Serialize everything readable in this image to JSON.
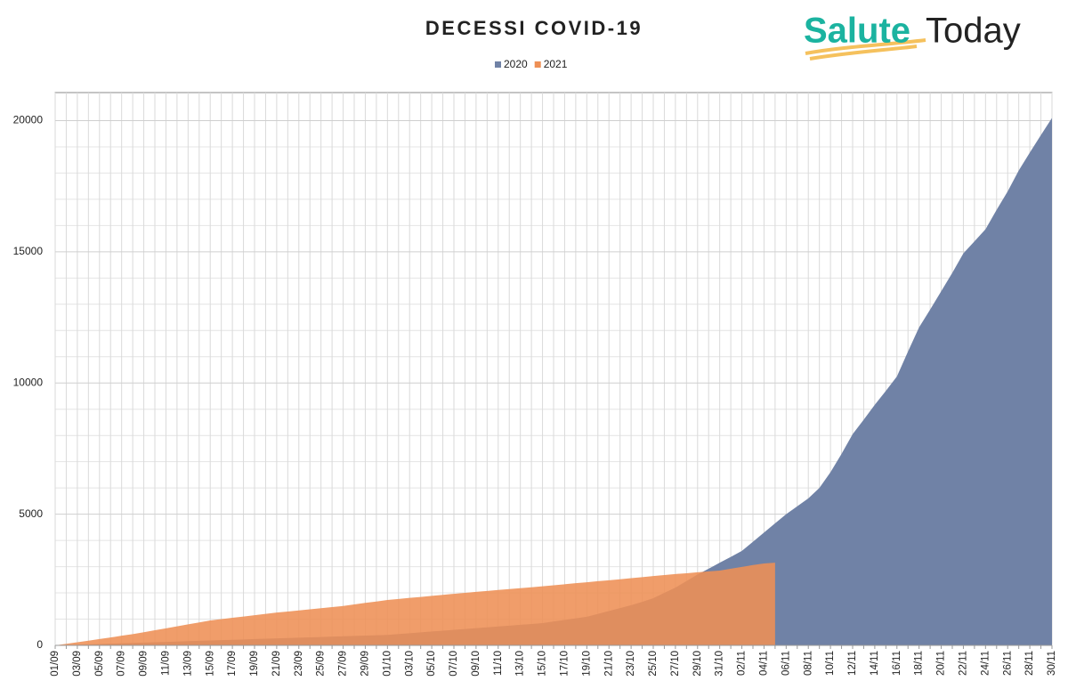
{
  "logo": {
    "first": "Salute",
    "second": "Today"
  },
  "chart_data": {
    "type": "area",
    "title": "DECESSI COVID-19",
    "categories": [
      "01/09",
      null,
      "03/09",
      null,
      "05/09",
      null,
      "07/09",
      null,
      "09/09",
      null,
      "11/09",
      null,
      "13/09",
      null,
      "15/09",
      null,
      "17/09",
      null,
      "19/09",
      null,
      "21/09",
      null,
      "23/09",
      null,
      "25/09",
      null,
      "27/09",
      null,
      "29/09",
      null,
      "01/10",
      null,
      "03/10",
      null,
      "05/10",
      null,
      "07/10",
      null,
      "09/10",
      null,
      "11/10",
      null,
      "13/10",
      null,
      "15/10",
      null,
      "17/10",
      null,
      "19/10",
      null,
      "21/10",
      null,
      "23/10",
      null,
      "25/10",
      null,
      "27/10",
      null,
      "29/10",
      null,
      "31/10",
      null,
      "02/11",
      null,
      "04/11",
      null,
      "06/11",
      null,
      "08/11",
      null,
      "10/11",
      null,
      "12/11",
      null,
      "14/11",
      null,
      "16/11",
      null,
      "18/11",
      null,
      "20/11",
      null,
      "22/11",
      null,
      "24/11",
      null,
      "26/11",
      null,
      "28/11",
      null,
      "30/11"
    ],
    "series": [
      {
        "name": "2020",
        "color": "#7082a6",
        "values": [
          0,
          13,
          26,
          40,
          53,
          66,
          80,
          93,
          106,
          120,
          133,
          146,
          160,
          173,
          186,
          200,
          213,
          226,
          240,
          253,
          266,
          280,
          293,
          306,
          320,
          333,
          346,
          360,
          373,
          386,
          400,
          432,
          464,
          496,
          528,
          560,
          592,
          624,
          656,
          688,
          720,
          752,
          784,
          816,
          850,
          910,
          970,
          1030,
          1090,
          1200,
          1310,
          1420,
          1530,
          1660,
          1800,
          2000,
          2200,
          2450,
          2700,
          2920,
          3150,
          3370,
          3600,
          3950,
          4300,
          4650,
          5000,
          5300,
          5600,
          6000,
          6600,
          7300,
          8050,
          8600,
          9170,
          9700,
          10250,
          11200,
          12120,
          12800,
          13500,
          14200,
          14940,
          15400,
          15860,
          16600,
          17300,
          18100,
          18780,
          19450,
          20100
        ]
      },
      {
        "name": "2021",
        "color": "#ee9055",
        "values": [
          0,
          60,
          120,
          180,
          240,
          300,
          370,
          430,
          500,
          575,
          650,
          725,
          800,
          875,
          950,
          1000,
          1050,
          1100,
          1150,
          1200,
          1250,
          1290,
          1330,
          1375,
          1415,
          1460,
          1500,
          1560,
          1620,
          1670,
          1730,
          1770,
          1810,
          1845,
          1885,
          1925,
          1965,
          2000,
          2040,
          2075,
          2110,
          2145,
          2180,
          2215,
          2250,
          2290,
          2330,
          2370,
          2405,
          2445,
          2480,
          2520,
          2560,
          2600,
          2640,
          2680,
          2720,
          2750,
          2785,
          2820,
          2850,
          2920,
          2990,
          3060,
          3120,
          3150,
          null,
          null,
          null,
          null,
          null,
          null,
          null,
          null,
          null,
          null,
          null,
          null,
          null,
          null,
          null,
          null,
          null,
          null,
          null,
          null,
          null,
          null,
          null,
          null,
          null
        ]
      }
    ],
    "ylim": [
      0,
      21000
    ],
    "yticks": [
      0,
      5000,
      10000,
      15000,
      20000
    ],
    "grid": true,
    "legend": "top"
  }
}
